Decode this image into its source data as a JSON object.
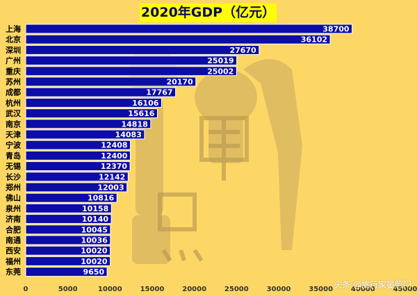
{
  "watermark": "头条 @旅行家晏照门",
  "chart_data": {
    "type": "bar",
    "orientation": "horizontal",
    "title": "2020年GDP（亿元）",
    "categories": [
      "上海",
      "北京",
      "深圳",
      "广州",
      "重庆",
      "苏州",
      "成都",
      "杭州",
      "武汉",
      "南京",
      "天津",
      "宁波",
      "青岛",
      "无锡",
      "长沙",
      "郑州",
      "佛山",
      "泉州",
      "济南",
      "合肥",
      "南通",
      "西安",
      "福州",
      "东莞"
    ],
    "values": [
      38700,
      36102,
      27670,
      25019,
      25002,
      20170,
      17767,
      16106,
      15616,
      14818,
      14083,
      12408,
      12400,
      12370,
      12142,
      12003,
      10816,
      10158,
      10140,
      10045,
      10036,
      10020,
      10020,
      9650
    ],
    "xlim": [
      0,
      45000
    ],
    "xticks": [
      0,
      5000,
      10000,
      15000,
      20000,
      25000,
      30000,
      35000,
      40000,
      45000
    ],
    "grid": false,
    "colors": {
      "bar": "#0c0ca6",
      "bar_edge": "#ffffff",
      "value_label": "#ffffff",
      "category_label": "#000000",
      "background": "#fdd766",
      "title_bg": "#ffff00",
      "title_text": "#0b0b5e"
    }
  }
}
